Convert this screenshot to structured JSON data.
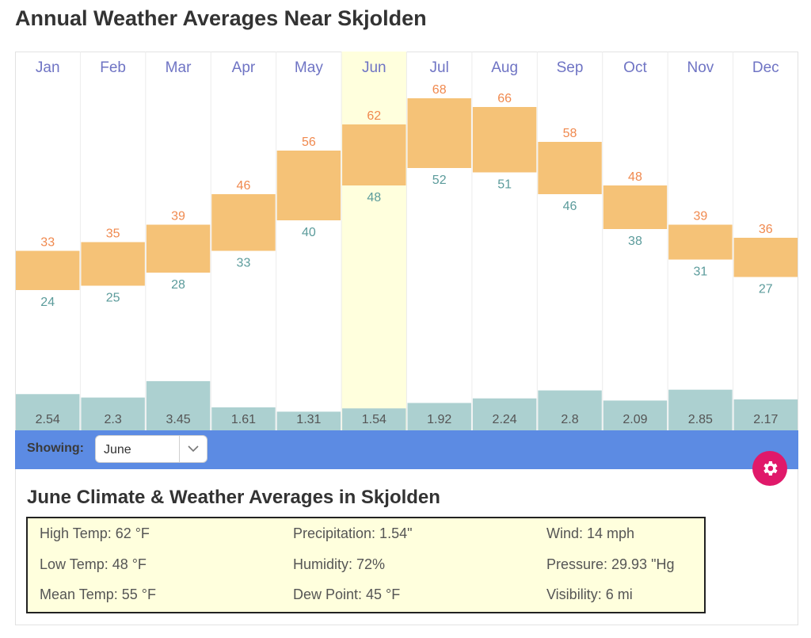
{
  "page": {
    "title": "Annual Weather Averages Near Skjolden"
  },
  "toolbar": {
    "showing_label": "Showing:",
    "selected_month": "June"
  },
  "colors": {
    "high_label": "#f0894e",
    "low_label": "#5b9b9b",
    "temp_bar": "#f5c277",
    "precip_bar": "#acd0d0",
    "month_label": "#6f74c4",
    "highlight": "#ffffdd",
    "toolbar": "#5c8be3",
    "gear_button": "#e0196a"
  },
  "details": {
    "title": "June Climate & Weather Averages in Skjolden",
    "stats": [
      [
        "High Temp: 62 °F",
        "Precipitation: 1.54\"",
        "Wind: 14 mph"
      ],
      [
        "Low Temp: 48 °F",
        "Humidity: 72%",
        "Pressure: 29.93 \"Hg"
      ],
      [
        "Mean Temp: 55 °F",
        "Dew Point: 45 °F",
        "Visibility: 6 mi"
      ]
    ]
  },
  "chart_data": {
    "type": "bar",
    "title": "Annual Weather Averages Near Skjolden",
    "categories": [
      "Jan",
      "Feb",
      "Mar",
      "Apr",
      "May",
      "Jun",
      "Jul",
      "Aug",
      "Sep",
      "Oct",
      "Nov",
      "Dec"
    ],
    "highlighted_category": "Jun",
    "series": [
      {
        "name": "High Temp (°F)",
        "values": [
          33,
          35,
          39,
          46,
          56,
          62,
          68,
          66,
          58,
          48,
          39,
          36
        ]
      },
      {
        "name": "Low Temp (°F)",
        "values": [
          24,
          25,
          28,
          33,
          40,
          48,
          52,
          51,
          46,
          38,
          31,
          27
        ]
      },
      {
        "name": "Precipitation (in)",
        "values": [
          2.54,
          2.3,
          3.45,
          1.61,
          1.31,
          1.54,
          1.92,
          2.24,
          2.8,
          2.09,
          2.85,
          2.17
        ]
      }
    ],
    "xlabel": "",
    "ylabel": "",
    "grid": false,
    "legend": "none"
  }
}
